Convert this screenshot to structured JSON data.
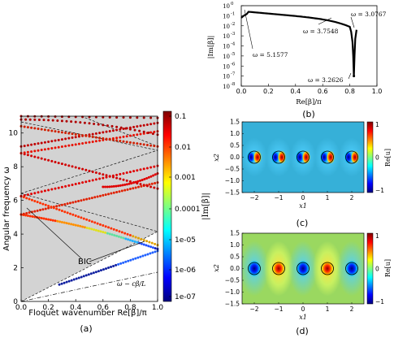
{
  "panel_a": {
    "caption": "(a)",
    "ylabel": "Angular frequency ω",
    "xlabel": "Floquet wavenumber Re[β]/π",
    "bic_label": "BIC",
    "light_line_label": "ω − cβ/L",
    "colorbar_label": "|Im[β]|",
    "x_ticks": [
      "0.0",
      "0.2",
      "0.4",
      "0.6",
      "0.8",
      "1.0"
    ],
    "y_ticks": [
      "0",
      "2",
      "4",
      "6",
      "8",
      "10"
    ],
    "cbar_ticks": [
      "0.1",
      "0.01",
      "0.001",
      "0.0001",
      "1e-05",
      "1e-06",
      "1e-07"
    ]
  },
  "panel_b": {
    "caption": "(b)",
    "ylabel": "|Im[β]|",
    "xlabel": "Re[β]/π",
    "x_ticks": [
      "0.0",
      "0.2",
      "0.4",
      "0.6",
      "0.8",
      "1.0"
    ],
    "y_tick_exps": [
      "0",
      "-1",
      "-2",
      "-3",
      "-4",
      "-5",
      "-6",
      "-7",
      "-8"
    ],
    "annotations": [
      "ω = 5.1577",
      "ω = 3.7548",
      "ω = 3.0767",
      "ω = 3.2626"
    ]
  },
  "panel_c": {
    "caption": "(c)",
    "xlabel": "x1",
    "ylabel": "x2",
    "cbar_label": "Re[u]",
    "x_ticks": [
      "−2",
      "−1",
      "0",
      "1",
      "2"
    ],
    "y_ticks": [
      "1.5",
      "1.0",
      "0.5",
      "0.0",
      "−0.5",
      "−1.0",
      "−1.5"
    ],
    "cbar_ticks": [
      "1",
      "0",
      "−1"
    ]
  },
  "panel_d": {
    "caption": "(d)",
    "xlabel": "x1",
    "ylabel": "x2",
    "cbar_label": "Re[u]",
    "x_ticks": [
      "−2",
      "−1",
      "0",
      "1",
      "2"
    ],
    "y_ticks": [
      "1.5",
      "1.0",
      "0.5",
      "0.0",
      "−0.5",
      "−1.0",
      "−1.5"
    ],
    "cbar_ticks": [
      "1",
      "0",
      "−1"
    ]
  }
}
